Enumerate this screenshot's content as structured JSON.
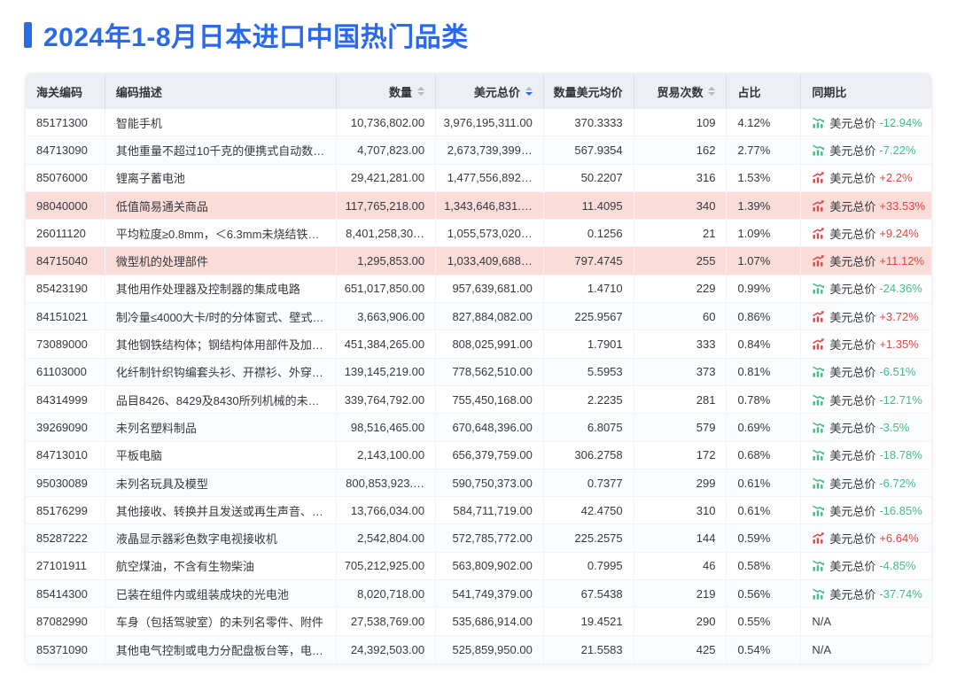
{
  "page_title": "2024年1-8月日本进口中国热门品类",
  "colors": {
    "accent": "#2a6ae9",
    "positive_red": "#e04543",
    "negative_green": "#3fbd85",
    "row_highlight": "#fadcd8",
    "header_bg": "#edeff5"
  },
  "table": {
    "columns": [
      {
        "key": "code",
        "label": "海关编码",
        "align": "left",
        "sortable": false,
        "sort": "none"
      },
      {
        "key": "desc",
        "label": "编码描述",
        "align": "left",
        "sortable": false,
        "sort": "none"
      },
      {
        "key": "qty",
        "label": "数量",
        "align": "right",
        "sortable": true,
        "sort": "none"
      },
      {
        "key": "usd",
        "label": "美元总价",
        "align": "right",
        "sortable": true,
        "sort": "desc"
      },
      {
        "key": "avg",
        "label": "数量美元均价",
        "align": "right",
        "sortable": false,
        "sort": "none"
      },
      {
        "key": "trades",
        "label": "贸易次数",
        "align": "right",
        "sortable": true,
        "sort": "none"
      },
      {
        "key": "share",
        "label": "占比",
        "align": "left",
        "sortable": false,
        "sort": "none"
      },
      {
        "key": "yoy",
        "label": "同期比",
        "align": "left",
        "sortable": false,
        "sort": "none"
      }
    ],
    "yoy_metric_label": "美元总价",
    "yoy_na_text": "N/A",
    "rows": [
      {
        "code": "85171300",
        "desc": "智能手机",
        "qty": "10,736,802.00",
        "usd": "3,976,195,311.00",
        "avg": "370.3333",
        "trades": "109",
        "share": "4.12%",
        "yoy_pct": "-12.94%",
        "trend": "down",
        "highlight": false
      },
      {
        "code": "84713090",
        "desc": "其他重量不超过10千克的便携式自动数…",
        "qty": "4,707,823.00",
        "usd": "2,673,739,399…",
        "avg": "567.9354",
        "trades": "162",
        "share": "2.77%",
        "yoy_pct": "-7.22%",
        "trend": "down",
        "highlight": false
      },
      {
        "code": "85076000",
        "desc": "锂离子蓄电池",
        "qty": "29,421,281.00",
        "usd": "1,477,556,892…",
        "avg": "50.2207",
        "trades": "316",
        "share": "1.53%",
        "yoy_pct": "+2.2%",
        "trend": "up",
        "highlight": false
      },
      {
        "code": "98040000",
        "desc": "低值简易通关商品",
        "qty": "117,765,218.00",
        "usd": "1,343,646,831.…",
        "avg": "11.4095",
        "trades": "340",
        "share": "1.39%",
        "yoy_pct": "+33.53%",
        "trend": "up",
        "highlight": true
      },
      {
        "code": "26011120",
        "desc": "平均粒度≥0.8mm，＜6.3mm未烧结铁…",
        "qty": "8,401,258,30…",
        "usd": "1,055,573,020…",
        "avg": "0.1256",
        "trades": "21",
        "share": "1.09%",
        "yoy_pct": "+9.24%",
        "trend": "up",
        "highlight": false
      },
      {
        "code": "84715040",
        "desc": "微型机的处理部件",
        "qty": "1,295,853.00",
        "usd": "1,033,409,688…",
        "avg": "797.4745",
        "trades": "255",
        "share": "1.07%",
        "yoy_pct": "+11.12%",
        "trend": "up",
        "highlight": true
      },
      {
        "code": "85423190",
        "desc": "其他用作处理器及控制器的集成电路",
        "qty": "651,017,850.00",
        "usd": "957,639,681.00",
        "avg": "1.4710",
        "trades": "229",
        "share": "0.99%",
        "yoy_pct": "-24.36%",
        "trend": "down",
        "highlight": false
      },
      {
        "code": "84151021",
        "desc": "制冷量≤4000大卡/时的分体窗式、壁式…",
        "qty": "3,663,906.00",
        "usd": "827,884,082.00",
        "avg": "225.9567",
        "trades": "60",
        "share": "0.86%",
        "yoy_pct": "+3.72%",
        "trend": "up",
        "highlight": false
      },
      {
        "code": "73089000",
        "desc": "其他钢铁结构体；钢结构体用部件及加…",
        "qty": "451,384,265.00",
        "usd": "808,025,991.00",
        "avg": "1.7901",
        "trades": "333",
        "share": "0.84%",
        "yoy_pct": "+1.35%",
        "trend": "up",
        "highlight": false
      },
      {
        "code": "61103000",
        "desc": "化纤制针织钩编套头衫、开襟衫、外穿…",
        "qty": "139,145,219.00",
        "usd": "778,562,510.00",
        "avg": "5.5953",
        "trades": "373",
        "share": "0.81%",
        "yoy_pct": "-6.51%",
        "trend": "down",
        "highlight": false
      },
      {
        "code": "84314999",
        "desc": "品目8426、8429及8430所列机械的未…",
        "qty": "339,764,792.00",
        "usd": "755,450,168.00",
        "avg": "2.2235",
        "trades": "281",
        "share": "0.78%",
        "yoy_pct": "-12.71%",
        "trend": "down",
        "highlight": false
      },
      {
        "code": "39269090",
        "desc": "未列名塑料制品",
        "qty": "98,516,465.00",
        "usd": "670,648,396.00",
        "avg": "6.8075",
        "trades": "579",
        "share": "0.69%",
        "yoy_pct": "-3.5%",
        "trend": "down",
        "highlight": false
      },
      {
        "code": "84713010",
        "desc": "平板电脑",
        "qty": "2,143,100.00",
        "usd": "656,379,759.00",
        "avg": "306.2758",
        "trades": "172",
        "share": "0.68%",
        "yoy_pct": "-18.78%",
        "trend": "down",
        "highlight": false
      },
      {
        "code": "95030089",
        "desc": "未列名玩具及模型",
        "qty": "800,853,923.…",
        "usd": "590,750,373.00",
        "avg": "0.7377",
        "trades": "299",
        "share": "0.61%",
        "yoy_pct": "-6.72%",
        "trend": "down",
        "highlight": false
      },
      {
        "code": "85176299",
        "desc": "其他接收、转换并且发送或再生声音、…",
        "qty": "13,766,034.00",
        "usd": "584,711,719.00",
        "avg": "42.4750",
        "trades": "310",
        "share": "0.61%",
        "yoy_pct": "-16.85%",
        "trend": "down",
        "highlight": false
      },
      {
        "code": "85287222",
        "desc": "液晶显示器彩色数字电视接收机",
        "qty": "2,542,804.00",
        "usd": "572,785,772.00",
        "avg": "225.2575",
        "trades": "144",
        "share": "0.59%",
        "yoy_pct": "+6.64%",
        "trend": "up",
        "highlight": false
      },
      {
        "code": "27101911",
        "desc": "航空煤油，不含有生物柴油",
        "qty": "705,212,925.00",
        "usd": "563,809,902.00",
        "avg": "0.7995",
        "trades": "46",
        "share": "0.58%",
        "yoy_pct": "-4.85%",
        "trend": "down",
        "highlight": false
      },
      {
        "code": "85414300",
        "desc": "已装在组件内或组装成块的光电池",
        "qty": "8,020,718.00",
        "usd": "541,749,379.00",
        "avg": "67.5438",
        "trades": "219",
        "share": "0.56%",
        "yoy_pct": "-37.74%",
        "trend": "down",
        "highlight": false
      },
      {
        "code": "87082990",
        "desc": "车身（包括驾驶室）的未列名零件、附件",
        "qty": "27,538,769.00",
        "usd": "535,686,914.00",
        "avg": "19.4521",
        "trades": "290",
        "share": "0.55%",
        "yoy_pct": "N/A",
        "trend": "na",
        "highlight": false
      },
      {
        "code": "85371090",
        "desc": "其他电气控制或电力分配盘板台等，电…",
        "qty": "24,392,503.00",
        "usd": "525,859,950.00",
        "avg": "21.5583",
        "trades": "425",
        "share": "0.54%",
        "yoy_pct": "N/A",
        "trend": "na",
        "highlight": false
      }
    ]
  }
}
